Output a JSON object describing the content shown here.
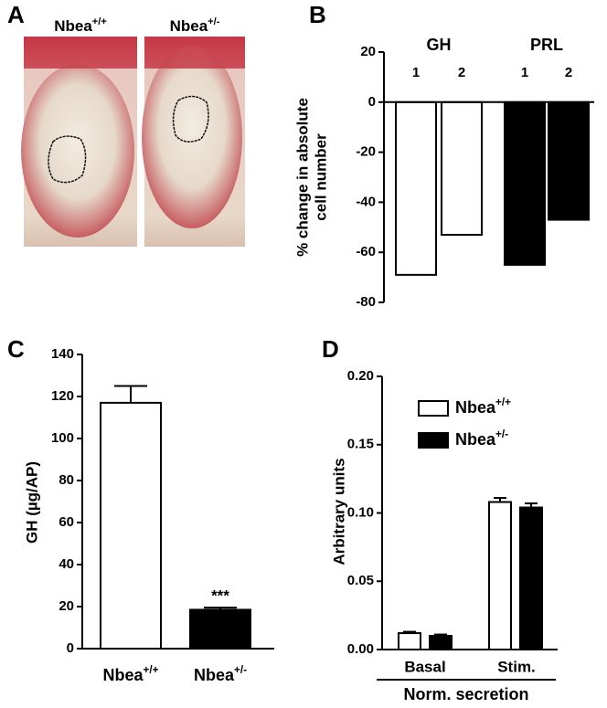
{
  "panel_labels": [
    "A",
    "B",
    "C",
    "D"
  ],
  "photo_panel": {
    "labels": [
      "Nbea+/+",
      "Nbea+/-"
    ]
  },
  "chart_data": [
    {
      "type": "grouped_bar",
      "ylabel": [
        "% change in absolute",
        "cell number"
      ],
      "categories": [
        "1",
        "2"
      ],
      "series": [
        {
          "name": "GH",
          "color": "#ffffff",
          "values": [
            -69,
            -53
          ]
        },
        {
          "name": "PRL",
          "color": "#000000",
          "values": [
            -65,
            -47
          ]
        }
      ],
      "ylim": [
        -80,
        20
      ],
      "yticks": [
        -80,
        -60,
        -40,
        -20,
        0,
        20
      ]
    },
    {
      "type": "bar",
      "ylabel": "GH (µg/AP)",
      "categories": [
        "Nbea+/+",
        "Nbea+/-"
      ],
      "values": [
        117,
        18.5
      ],
      "errors": [
        8,
        1
      ],
      "colors": [
        "#ffffff",
        "#000000"
      ],
      "annotation": "***",
      "ylim": [
        0,
        140
      ],
      "yticks": [
        0,
        20,
        40,
        60,
        80,
        100,
        120,
        140
      ]
    },
    {
      "type": "cluster_bar",
      "ylabel": "Arbitrary units",
      "xlabel": "Norm. secretion",
      "categories": [
        "Basal",
        "Stim."
      ],
      "series": [
        {
          "name": "Nbea+/+",
          "color": "#ffffff",
          "values": [
            0.012,
            0.108
          ],
          "errors": [
            0.001,
            0.003
          ]
        },
        {
          "name": "Nbea+/-",
          "color": "#000000",
          "values": [
            0.01,
            0.104
          ],
          "errors": [
            0.001,
            0.003
          ]
        }
      ],
      "ylim": [
        0,
        0.2
      ],
      "yticks": [
        {
          "value": 0,
          "label": "0.00"
        },
        {
          "value": 0.05,
          "label": "0.05"
        },
        {
          "value": 0.1,
          "label": "0.10"
        },
        {
          "value": 0.15,
          "label": "0.15"
        },
        {
          "value": 0.2,
          "label": "0.20"
        }
      ],
      "legend": "upper left"
    }
  ]
}
